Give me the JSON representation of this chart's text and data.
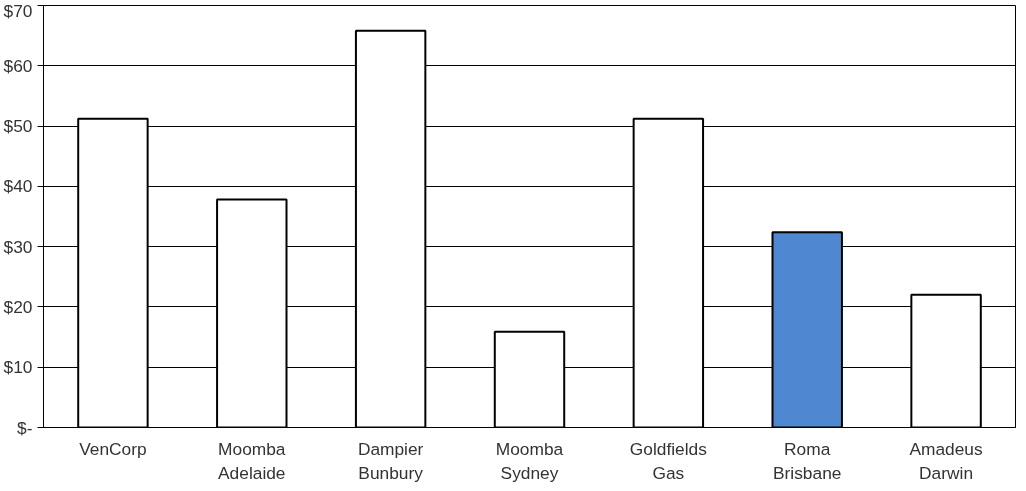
{
  "chart_data": {
    "type": "bar",
    "categories": [
      "VenCorp",
      "Moomba\nAdelaide",
      "Dampier\nBunbury",
      "Moomba\nSydney",
      "Goldfields\nGas",
      "Roma\nBrisbane",
      "Amadeus\nDarwin"
    ],
    "values": [
      51.2,
      37.8,
      65.8,
      15.9,
      51.2,
      32.4,
      22.0
    ],
    "colors": [
      "#ffffff",
      "#ffffff",
      "#ffffff",
      "#ffffff",
      "#ffffff",
      "#4f88d0",
      "#ffffff"
    ],
    "ylim": [
      0,
      70
    ],
    "yticks": [
      {
        "value": 0,
        "label": "$-"
      },
      {
        "value": 10,
        "label": "$10"
      },
      {
        "value": 20,
        "label": "$20"
      },
      {
        "value": 30,
        "label": "$30"
      },
      {
        "value": 40,
        "label": "$40"
      },
      {
        "value": 50,
        "label": "$50"
      },
      {
        "value": 60,
        "label": "$60"
      },
      {
        "value": 70,
        "label": "$70"
      }
    ],
    "grid": "y"
  }
}
